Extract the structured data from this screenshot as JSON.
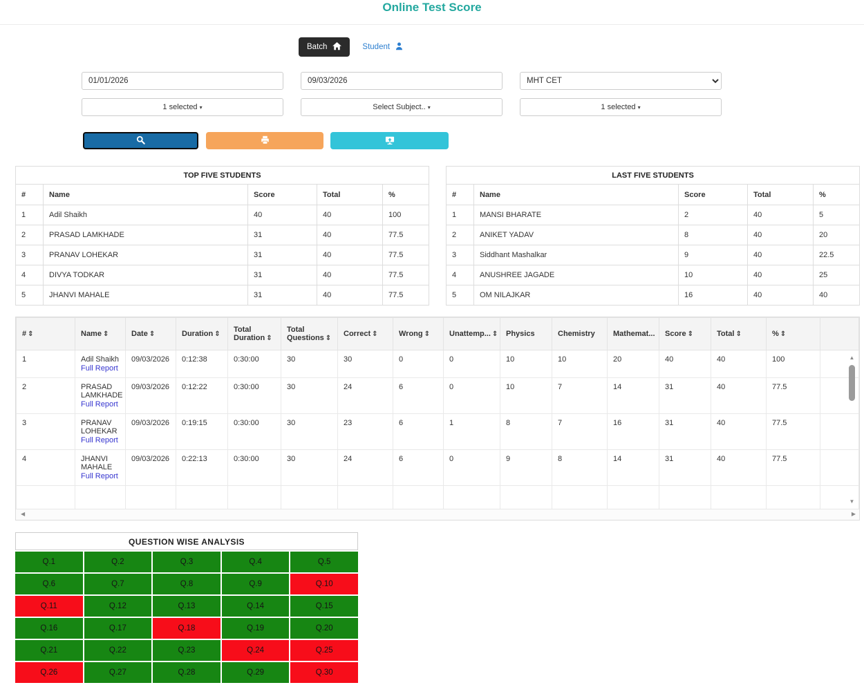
{
  "page": {
    "title": "Online Test Score"
  },
  "colors": {
    "title_teal": "#23a89f",
    "batch_dark": "#2b2b2b",
    "student_blue": "#2d7fd0",
    "link_blue": "#3534cf",
    "search_blue": "#186ba5",
    "print_orange": "#f6a55b",
    "export_cyan": "#33c4d9",
    "correct_green": "#178613",
    "wrong_red": "#f70d1a"
  },
  "icons": {
    "sort": "⇕",
    "up": "▲",
    "down": "▼",
    "left": "◀",
    "right": "▶"
  },
  "tabs": {
    "batch_label": "Batch",
    "student_label": "Student"
  },
  "filters": {
    "date_from": "01/01/2026",
    "date_to": "09/03/2026",
    "exam_selected": "MHT CET",
    "batch_dropdown": "1 selected",
    "subject_dropdown": "Select Subject..",
    "test_dropdown": "1 selected",
    "caret": "▾"
  },
  "top_students": {
    "title": "TOP FIVE STUDENTS",
    "columns": [
      "#",
      "Name",
      "Score",
      "Total",
      "%"
    ],
    "rows": [
      [
        "1",
        "Adil Shaikh",
        "40",
        "40",
        "100"
      ],
      [
        "2",
        "PRASAD LAMKHADE",
        "31",
        "40",
        "77.5"
      ],
      [
        "3",
        "PRANAV LOHEKAR",
        "31",
        "40",
        "77.5"
      ],
      [
        "4",
        "DIVYA TODKAR",
        "31",
        "40",
        "77.5"
      ],
      [
        "5",
        "JHANVI MAHALE",
        "31",
        "40",
        "77.5"
      ]
    ]
  },
  "last_students": {
    "title": "LAST FIVE STUDENTS",
    "columns": [
      "#",
      "Name",
      "Score",
      "Total",
      "%"
    ],
    "rows": [
      [
        "1",
        "MANSI BHARATE",
        "2",
        "40",
        "5"
      ],
      [
        "2",
        "ANIKET YADAV",
        "8",
        "40",
        "20"
      ],
      [
        "3",
        "Siddhant Mashalkar",
        "9",
        "40",
        "22.5"
      ],
      [
        "4",
        "ANUSHREE JAGADE",
        "10",
        "40",
        "25"
      ],
      [
        "5",
        "OM NILAJKAR",
        "16",
        "40",
        "40"
      ]
    ]
  },
  "results_table": {
    "full_report_label": "Full Report",
    "columns": [
      {
        "label": "#",
        "sortable": true
      },
      {
        "label": "Name",
        "sortable": true
      },
      {
        "label": "Date",
        "sortable": true
      },
      {
        "label": "Duration",
        "sortable": true
      },
      {
        "label": "Total Duration",
        "sortable": true
      },
      {
        "label": "Total Questions",
        "sortable": true
      },
      {
        "label": "Correct",
        "sortable": true
      },
      {
        "label": "Wrong",
        "sortable": true
      },
      {
        "label": "Unattemp...",
        "sortable": true
      },
      {
        "label": "Physics",
        "sortable": false
      },
      {
        "label": "Chemistry",
        "sortable": false
      },
      {
        "label": "Mathemat...",
        "sortable": false
      },
      {
        "label": "Score",
        "sortable": true
      },
      {
        "label": "Total",
        "sortable": true
      },
      {
        "label": "%",
        "sortable": true
      }
    ],
    "rows": [
      {
        "num": "1",
        "name": "Adil Shaikh",
        "date": "09/03/2026",
        "duration": "0:12:38",
        "total_duration": "0:30:00",
        "total_questions": "30",
        "correct": "30",
        "wrong": "0",
        "unattempted": "0",
        "physics": "10",
        "chemistry": "10",
        "mathematics": "20",
        "score": "40",
        "total": "40",
        "percent": "100"
      },
      {
        "num": "2",
        "name": "PRASAD LAMKHADE",
        "date": "09/03/2026",
        "duration": "0:12:22",
        "total_duration": "0:30:00",
        "total_questions": "30",
        "correct": "24",
        "wrong": "6",
        "unattempted": "0",
        "physics": "10",
        "chemistry": "7",
        "mathematics": "14",
        "score": "31",
        "total": "40",
        "percent": "77.5"
      },
      {
        "num": "3",
        "name": "PRANAV LOHEKAR",
        "date": "09/03/2026",
        "duration": "0:19:15",
        "total_duration": "0:30:00",
        "total_questions": "30",
        "correct": "23",
        "wrong": "6",
        "unattempted": "1",
        "physics": "8",
        "chemistry": "7",
        "mathematics": "16",
        "score": "31",
        "total": "40",
        "percent": "77.5"
      },
      {
        "num": "4",
        "name": "JHANVI MAHALE",
        "date": "09/03/2026",
        "duration": "0:22:13",
        "total_duration": "0:30:00",
        "total_questions": "30",
        "correct": "24",
        "wrong": "6",
        "unattempted": "0",
        "physics": "9",
        "chemistry": "8",
        "mathematics": "14",
        "score": "31",
        "total": "40",
        "percent": "77.5"
      }
    ]
  },
  "question_analysis": {
    "title": "QUESTION WISE ANALYSIS",
    "cells": [
      {
        "label": "Q.1",
        "status": "correct"
      },
      {
        "label": "Q.2",
        "status": "correct"
      },
      {
        "label": "Q.3",
        "status": "correct"
      },
      {
        "label": "Q.4",
        "status": "correct"
      },
      {
        "label": "Q.5",
        "status": "correct"
      },
      {
        "label": "Q.6",
        "status": "correct"
      },
      {
        "label": "Q.7",
        "status": "correct"
      },
      {
        "label": "Q.8",
        "status": "correct"
      },
      {
        "label": "Q.9",
        "status": "correct"
      },
      {
        "label": "Q.10",
        "status": "wrong"
      },
      {
        "label": "Q.11",
        "status": "wrong"
      },
      {
        "label": "Q.12",
        "status": "correct"
      },
      {
        "label": "Q.13",
        "status": "correct"
      },
      {
        "label": "Q.14",
        "status": "correct"
      },
      {
        "label": "Q.15",
        "status": "correct"
      },
      {
        "label": "Q.16",
        "status": "correct"
      },
      {
        "label": "Q.17",
        "status": "correct"
      },
      {
        "label": "Q.18",
        "status": "wrong"
      },
      {
        "label": "Q.19",
        "status": "correct"
      },
      {
        "label": "Q.20",
        "status": "correct"
      },
      {
        "label": "Q.21",
        "status": "correct"
      },
      {
        "label": "Q.22",
        "status": "correct"
      },
      {
        "label": "Q.23",
        "status": "correct"
      },
      {
        "label": "Q.24",
        "status": "wrong"
      },
      {
        "label": "Q.25",
        "status": "wrong"
      },
      {
        "label": "Q.26",
        "status": "wrong"
      },
      {
        "label": "Q.27",
        "status": "correct"
      },
      {
        "label": "Q.28",
        "status": "correct"
      },
      {
        "label": "Q.29",
        "status": "correct"
      },
      {
        "label": "Q.30",
        "status": "wrong"
      }
    ]
  }
}
